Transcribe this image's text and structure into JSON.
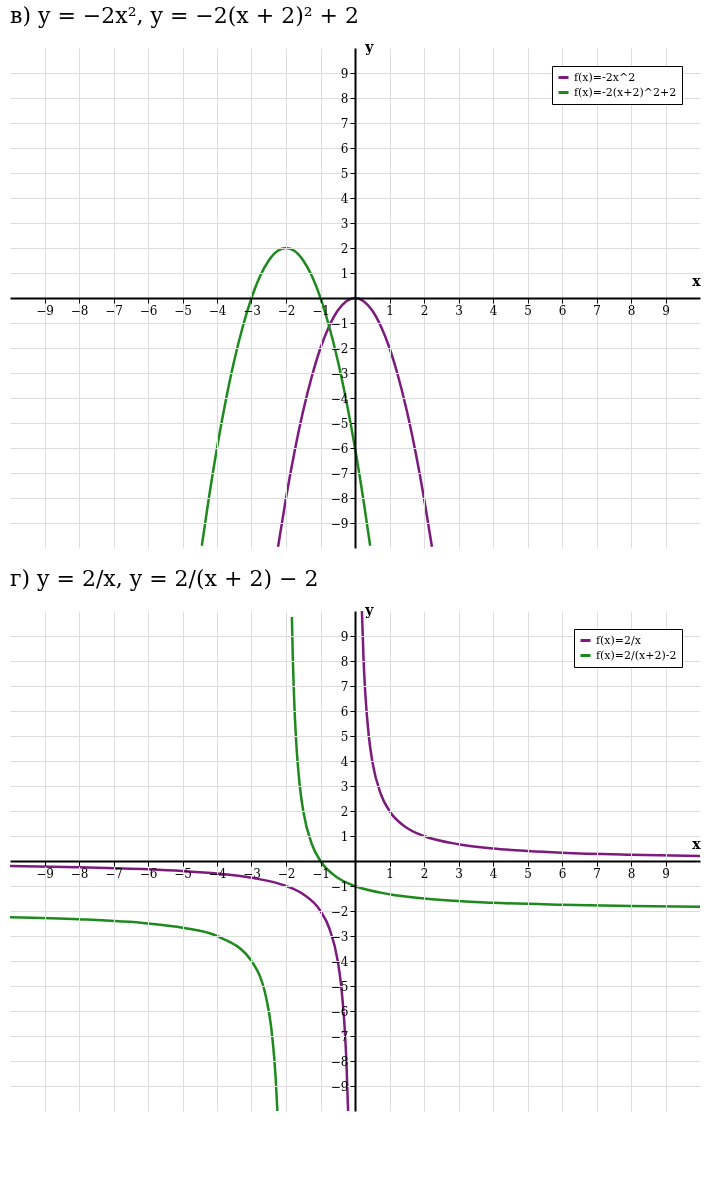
{
  "chart_data": [
    {
      "type": "line",
      "title": "в) y = −2x²,      y = −2(x + 2)² + 2",
      "xlabel": "x",
      "ylabel": "y",
      "xlim": [
        -10,
        10
      ],
      "ylim": [
        -10,
        10
      ],
      "xticks": [
        -9,
        -8,
        -7,
        -6,
        -5,
        -4,
        -3,
        -2,
        -1,
        1,
        2,
        3,
        4,
        5,
        6,
        7,
        8,
        9
      ],
      "yticks": [
        -9,
        -8,
        -7,
        -6,
        -5,
        -4,
        -3,
        -2,
        -1,
        1,
        2,
        3,
        4,
        5,
        6,
        7,
        8,
        9
      ],
      "grid": true,
      "legend": "top right",
      "series": [
        {
          "name": "f(x)=-2x^2",
          "color": "#7d1a7d",
          "x": [
            -2.23,
            -2,
            -1.75,
            -1.5,
            -1.25,
            -1,
            -0.75,
            -0.5,
            -0.25,
            0,
            0.25,
            0.5,
            0.75,
            1,
            1.25,
            1.5,
            1.75,
            2,
            2.23
          ],
          "values": [
            -9.95,
            -8,
            -6.13,
            -4.5,
            -3.13,
            -2,
            -1.13,
            -0.5,
            -0.13,
            0,
            -0.13,
            -0.5,
            -1.13,
            -2,
            -3.13,
            -4.5,
            -6.13,
            -8,
            -9.95
          ]
        },
        {
          "name": "f(x)=-2(x+2)^2+2",
          "color": "#1e8a1e",
          "x": [
            -4.44,
            -4.25,
            -4,
            -3.75,
            -3.5,
            -3.25,
            -3,
            -2.75,
            -2.5,
            -2.25,
            -2,
            -1.75,
            -1.5,
            -1.25,
            -1,
            -0.75,
            -0.5,
            -0.25,
            0,
            0.25,
            0.44
          ],
          "values": [
            -9.91,
            -8.13,
            -6,
            -4.13,
            -2.5,
            -1.13,
            0,
            0.88,
            1.5,
            1.88,
            2,
            1.88,
            1.5,
            0.88,
            0,
            -1.13,
            -2.5,
            -4.13,
            -6,
            -8.13,
            -9.91
          ]
        }
      ]
    },
    {
      "type": "line",
      "title": "г) y = 2/x,      y = 2/(x + 2) − 2",
      "xlabel": "x",
      "ylabel": "y",
      "xlim": [
        -10,
        10
      ],
      "ylim": [
        -10,
        10
      ],
      "xticks": [
        -9,
        -8,
        -7,
        -6,
        -5,
        -4,
        -3,
        -2,
        -1,
        1,
        2,
        3,
        4,
        5,
        6,
        7,
        8,
        9
      ],
      "yticks": [
        -9,
        -8,
        -7,
        -6,
        -5,
        -4,
        -3,
        -2,
        -1,
        1,
        2,
        3,
        4,
        5,
        6,
        7,
        8,
        9
      ],
      "grid": true,
      "legend": "top right",
      "series": [
        {
          "name": "f(x)=2/x",
          "color": "#7d1a7d",
          "x": [
            -10,
            -8,
            -6,
            -5,
            -4,
            -3,
            -2,
            -1.5,
            -1,
            -0.75,
            -0.5,
            -0.4,
            -0.3,
            -0.25,
            -0.2,
            0,
            0.2,
            0.25,
            0.3,
            0.4,
            0.5,
            0.75,
            1,
            1.5,
            2,
            3,
            4,
            5,
            6,
            8,
            10
          ],
          "values": [
            -0.2,
            -0.25,
            -0.33,
            -0.4,
            -0.5,
            -0.67,
            -1,
            -1.33,
            -2,
            -2.67,
            -4,
            -5,
            -6.67,
            -8,
            -10,
            null,
            10,
            8,
            6.67,
            5,
            4,
            2.67,
            2,
            1.33,
            1,
            0.67,
            0.5,
            0.4,
            0.33,
            0.25,
            0.2
          ]
        },
        {
          "name": "f(x)=2/(x+2)-2",
          "color": "#1e8a1e",
          "x": [
            -10,
            -8,
            -6,
            -5,
            -4,
            -3,
            -2.5,
            -2.4,
            -2.3,
            -2.25,
            -2,
            -1.83,
            -1.8,
            -1.75,
            -1.7,
            -1.6,
            -1.5,
            -1.25,
            -1,
            -0.5,
            0,
            1,
            2,
            4,
            6,
            8,
            10
          ],
          "values": [
            -2.25,
            -2.33,
            -2.5,
            -2.67,
            -3,
            -4,
            -6,
            -7,
            -8.67,
            -10,
            null,
            9.76,
            8,
            6,
            4.67,
            3,
            2,
            0.67,
            0,
            -0.67,
            -1,
            -1.33,
            -1.5,
            -1.67,
            -1.75,
            -1.8,
            -1.83
          ]
        }
      ]
    }
  ]
}
